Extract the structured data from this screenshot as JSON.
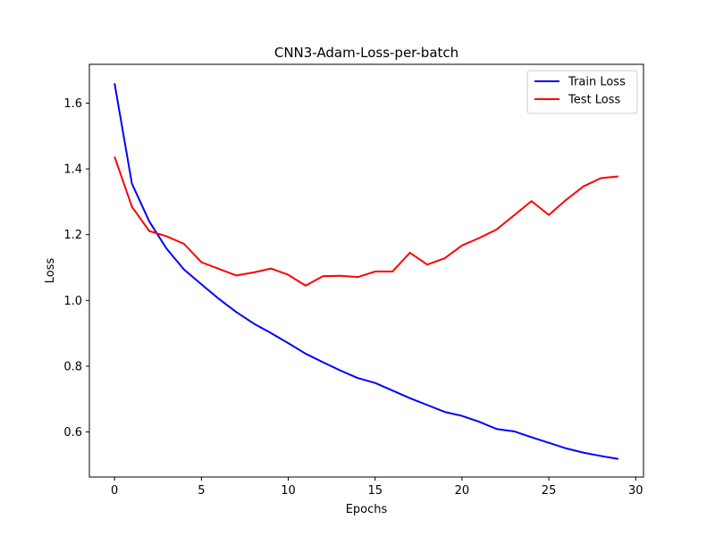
{
  "chart_data": {
    "type": "line",
    "title": "CNN3-Adam-Loss-per-batch",
    "xlabel": "Epochs",
    "ylabel": "Loss",
    "xlim": [
      -1.45,
      30.45
    ],
    "ylim": [
      0.463,
      1.718
    ],
    "xticks": [
      0,
      5,
      10,
      15,
      20,
      25,
      30
    ],
    "yticks": [
      0.6,
      0.8,
      1.0,
      1.2,
      1.4,
      1.6
    ],
    "ytick_labels": [
      "0.6",
      "0.8",
      "1.0",
      "1.2",
      "1.4",
      "1.6"
    ],
    "grid": false,
    "legend_position": "top-right",
    "x": [
      0,
      1,
      2,
      3,
      4,
      5,
      6,
      7,
      8,
      9,
      10,
      11,
      12,
      13,
      14,
      15,
      16,
      17,
      18,
      19,
      20,
      21,
      22,
      23,
      24,
      25,
      26,
      27,
      28,
      29
    ],
    "series": [
      {
        "name": "Train Loss",
        "color": "#0000ff",
        "values": [
          1.66,
          1.355,
          1.24,
          1.157,
          1.094,
          1.049,
          1.005,
          0.965,
          0.93,
          0.901,
          0.87,
          0.838,
          0.812,
          0.787,
          0.764,
          0.749,
          0.726,
          0.703,
          0.682,
          0.661,
          0.649,
          0.631,
          0.609,
          0.602,
          0.584,
          0.567,
          0.55,
          0.537,
          0.527,
          0.518
        ]
      },
      {
        "name": "Test Loss",
        "color": "#ff0000",
        "values": [
          1.437,
          1.285,
          1.211,
          1.195,
          1.172,
          1.116,
          1.096,
          1.076,
          1.085,
          1.097,
          1.078,
          1.045,
          1.074,
          1.075,
          1.071,
          1.088,
          1.088,
          1.145,
          1.109,
          1.128,
          1.167,
          1.19,
          1.216,
          1.259,
          1.302,
          1.26,
          1.306,
          1.347,
          1.372,
          1.377
        ]
      }
    ]
  }
}
